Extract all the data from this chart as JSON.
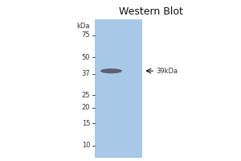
{
  "title": "Western Blot",
  "title_fontsize": 9,
  "background_color": "#a8c8e8",
  "outer_background": "#ffffff",
  "kda_labels": [
    75,
    50,
    37,
    25,
    20,
    15,
    10
  ],
  "kda_label_color": "#333333",
  "band_kda": 39,
  "band_color": "#555566",
  "band_alpha": 0.9,
  "arrow_color": "#111111",
  "band_label": "←39kDa",
  "lane_color": "#aac8e0"
}
